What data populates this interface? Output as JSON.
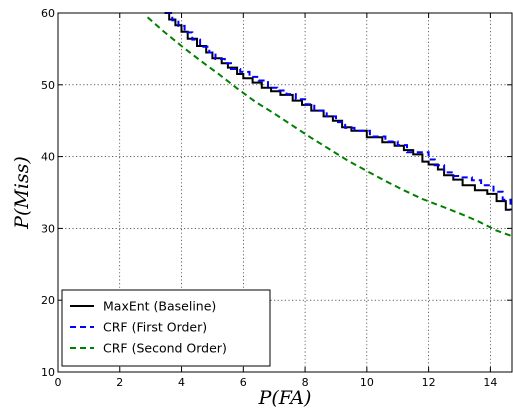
{
  "chart_data": {
    "type": "line",
    "title": "",
    "xlabel": "P(FA)",
    "ylabel": "P(Miss)",
    "xlim": [
      0,
      14.7
    ],
    "ylim": [
      10,
      60
    ],
    "xticks": [
      0,
      2,
      4,
      6,
      8,
      10,
      12,
      14
    ],
    "yticks": [
      10,
      20,
      30,
      40,
      50,
      60
    ],
    "xtick_labels": [
      "0",
      "2",
      "4",
      "6",
      "8",
      "10",
      "12",
      "14"
    ],
    "ytick_labels": [
      "10",
      "20",
      "30",
      "40",
      "50",
      "60"
    ],
    "grid": true,
    "legend_position": "lower-left",
    "series": [
      {
        "name": "MaxEnt (Baseline)",
        "color": "#000000",
        "style": "solid",
        "step": true,
        "x": [
          3.45,
          3.6,
          3.8,
          4.0,
          4.2,
          4.5,
          4.8,
          5.0,
          5.3,
          5.5,
          5.8,
          6.0,
          6.3,
          6.6,
          6.9,
          7.2,
          7.6,
          7.9,
          8.2,
          8.6,
          8.9,
          9.2,
          9.5,
          10.0,
          10.5,
          10.9,
          11.2,
          11.5,
          11.8,
          12.0,
          12.3,
          12.5,
          12.8,
          13.1,
          13.5,
          13.9,
          14.2,
          14.5,
          14.65
        ],
        "y": [
          60.0,
          59.1,
          58.3,
          57.4,
          56.4,
          55.4,
          54.5,
          53.7,
          53.0,
          52.4,
          51.5,
          50.9,
          50.3,
          49.6,
          49.1,
          48.6,
          47.8,
          47.2,
          46.4,
          45.6,
          45.0,
          44.1,
          43.6,
          42.7,
          42.0,
          41.5,
          40.9,
          40.3,
          39.3,
          38.9,
          38.2,
          37.4,
          36.8,
          36.0,
          35.3,
          34.8,
          33.8,
          32.6,
          32.5
        ]
      },
      {
        "name": "CRF (First Order)",
        "color": "#0000ff",
        "style": "dashed",
        "step": true,
        "x": [
          3.5,
          3.7,
          3.9,
          4.1,
          4.35,
          4.6,
          4.9,
          5.1,
          5.4,
          5.6,
          5.9,
          6.2,
          6.5,
          6.8,
          7.1,
          7.4,
          7.7,
          8.0,
          8.3,
          8.7,
          9.0,
          9.3,
          9.6,
          10.1,
          10.6,
          11.0,
          11.3,
          11.7,
          12.0,
          12.2,
          12.5,
          12.8,
          13.1,
          13.4,
          13.7,
          14.1,
          14.4,
          14.65
        ],
        "y": [
          60.0,
          59.0,
          58.2,
          57.3,
          56.3,
          55.3,
          54.5,
          53.6,
          53.0,
          52.2,
          51.8,
          51.1,
          50.6,
          49.6,
          49.2,
          48.7,
          48.0,
          47.3,
          46.4,
          45.6,
          44.8,
          44.0,
          43.6,
          42.8,
          42.1,
          41.6,
          40.6,
          40.6,
          39.6,
          38.8,
          37.8,
          37.3,
          37.1,
          36.7,
          36.0,
          35.1,
          34.0,
          32.7
        ]
      },
      {
        "name": "CRF (Second Order)",
        "color": "#008000",
        "style": "dashed",
        "step": false,
        "x": [
          2.9,
          3.4,
          4.0,
          4.6,
          5.2,
          5.8,
          6.4,
          7.0,
          7.6,
          8.2,
          8.8,
          9.4,
          10.0,
          10.6,
          11.2,
          11.8,
          12.4,
          13.0,
          13.6,
          14.2,
          14.65
        ],
        "y": [
          59.4,
          57.5,
          55.4,
          53.4,
          51.5,
          49.5,
          47.6,
          46.0,
          44.3,
          42.6,
          41.0,
          39.4,
          38.0,
          36.6,
          35.3,
          34.1,
          33.1,
          32.1,
          31.0,
          29.7,
          29.0
        ]
      }
    ]
  }
}
